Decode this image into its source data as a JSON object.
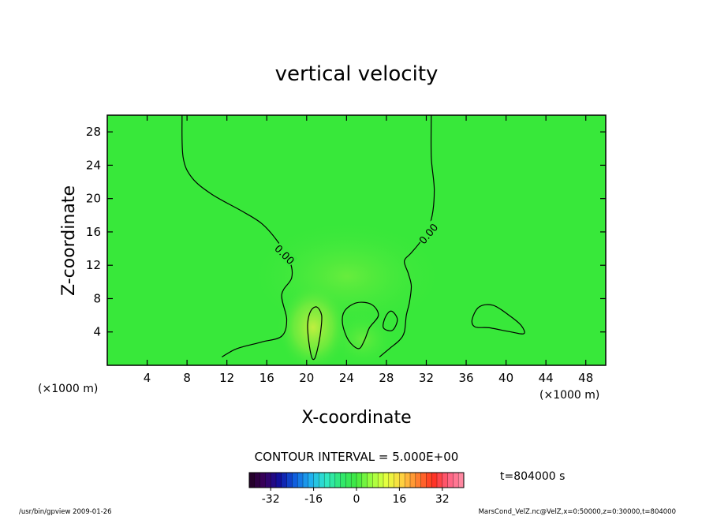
{
  "chart_data": {
    "type": "heatmap",
    "title": "vertical velocity",
    "xlabel": "X-coordinate",
    "ylabel": "Z-coordinate",
    "x_unit_label": "(×1000 m)",
    "y_unit_label": "(×1000 m)",
    "xlim": [
      0,
      50
    ],
    "ylim": [
      0,
      30
    ],
    "x_ticks": [
      4,
      8,
      12,
      16,
      20,
      24,
      28,
      32,
      36,
      40,
      44,
      48
    ],
    "y_ticks": [
      4,
      8,
      12,
      16,
      20,
      24,
      28
    ],
    "field_description_color": "#33e833",
    "contour_interval_text": "CONTOUR INTERVAL = 5.000E+00",
    "contour_labels": [
      {
        "text": "0.00",
        "x": 17.8,
        "y": 13.3
      },
      {
        "text": "0.00",
        "x": 32.2,
        "y": 15.8
      }
    ],
    "contours": [
      {
        "level": 0,
        "points": [
          [
            7.5,
            30
          ],
          [
            7.6,
            25
          ],
          [
            8.5,
            22.5
          ],
          [
            10.5,
            20.5
          ],
          [
            13.5,
            18.5
          ],
          [
            15.5,
            17
          ],
          [
            17,
            15
          ],
          [
            18.3,
            12.5
          ],
          [
            18.5,
            10.5
          ],
          [
            17.5,
            8.5
          ],
          [
            18,
            5.5
          ],
          [
            17.5,
            3.5
          ],
          [
            15.5,
            2.8
          ],
          [
            13,
            2
          ],
          [
            11.5,
            1
          ]
        ]
      },
      {
        "level": 0,
        "points": [
          [
            32.5,
            30
          ],
          [
            32.5,
            25
          ],
          [
            32.8,
            21
          ],
          [
            32.5,
            17.5
          ],
          [
            31.5,
            15
          ],
          [
            30.5,
            13.5
          ],
          [
            29.8,
            12.5
          ],
          [
            30.2,
            11
          ],
          [
            30.5,
            9.5
          ],
          [
            30.3,
            7.5
          ],
          [
            30,
            6
          ],
          [
            29.8,
            4
          ],
          [
            29.3,
            3
          ],
          [
            28.3,
            2
          ],
          [
            27.3,
            1
          ]
        ]
      },
      {
        "level": 5,
        "closed": true,
        "points": [
          [
            20.5,
            1
          ],
          [
            20.2,
            3
          ],
          [
            20.1,
            5
          ],
          [
            20.4,
            6.5
          ],
          [
            21,
            7
          ],
          [
            21.5,
            6
          ],
          [
            21.4,
            4
          ],
          [
            21.1,
            2
          ],
          [
            20.8,
            0.8
          ]
        ]
      },
      {
        "level": 0,
        "closed": true,
        "points": [
          [
            23.8,
            6.5
          ],
          [
            23.6,
            5
          ],
          [
            24.2,
            3
          ],
          [
            25.2,
            2
          ],
          [
            25.8,
            3
          ],
          [
            26.3,
            4.5
          ],
          [
            27.2,
            6
          ],
          [
            26.5,
            7.3
          ],
          [
            25,
            7.5
          ]
        ]
      },
      {
        "level": 0,
        "closed": true,
        "points": [
          [
            27.7,
            4.5
          ],
          [
            27.9,
            5.8
          ],
          [
            28.5,
            6.5
          ],
          [
            29.1,
            5.5
          ],
          [
            28.6,
            4.2
          ]
        ]
      },
      {
        "level": 0,
        "closed": true,
        "points": [
          [
            36.6,
            5.5
          ],
          [
            37.3,
            7
          ],
          [
            38.7,
            7.2
          ],
          [
            40.3,
            6
          ],
          [
            41.5,
            4.8
          ],
          [
            41.8,
            3.8
          ],
          [
            40.5,
            4
          ],
          [
            38.3,
            4.5
          ],
          [
            36.9,
            4.6
          ]
        ]
      }
    ],
    "colorbar": {
      "min": -40,
      "max": 40,
      "tick_values": [
        -32,
        -16,
        0,
        16,
        32
      ],
      "tick_labels": [
        "-32",
        "-16",
        "0",
        "16",
        "32"
      ],
      "colormap": [
        "#200020",
        "#3a0060",
        "#1010a0",
        "#1060e0",
        "#20b0f0",
        "#30e8c8",
        "#30e870",
        "#40e840",
        "#a0ff40",
        "#e8ff40",
        "#ffd040",
        "#ff8030",
        "#ff3020",
        "#ff6080",
        "#ff90a8"
      ]
    },
    "time_label": "t=804000 s"
  },
  "footer": {
    "left": "/usr/bin/gpview   2009-01-26",
    "right": "MarsCond_VelZ.nc@VelZ,x=0:50000,z=0:30000,t=804000"
  }
}
